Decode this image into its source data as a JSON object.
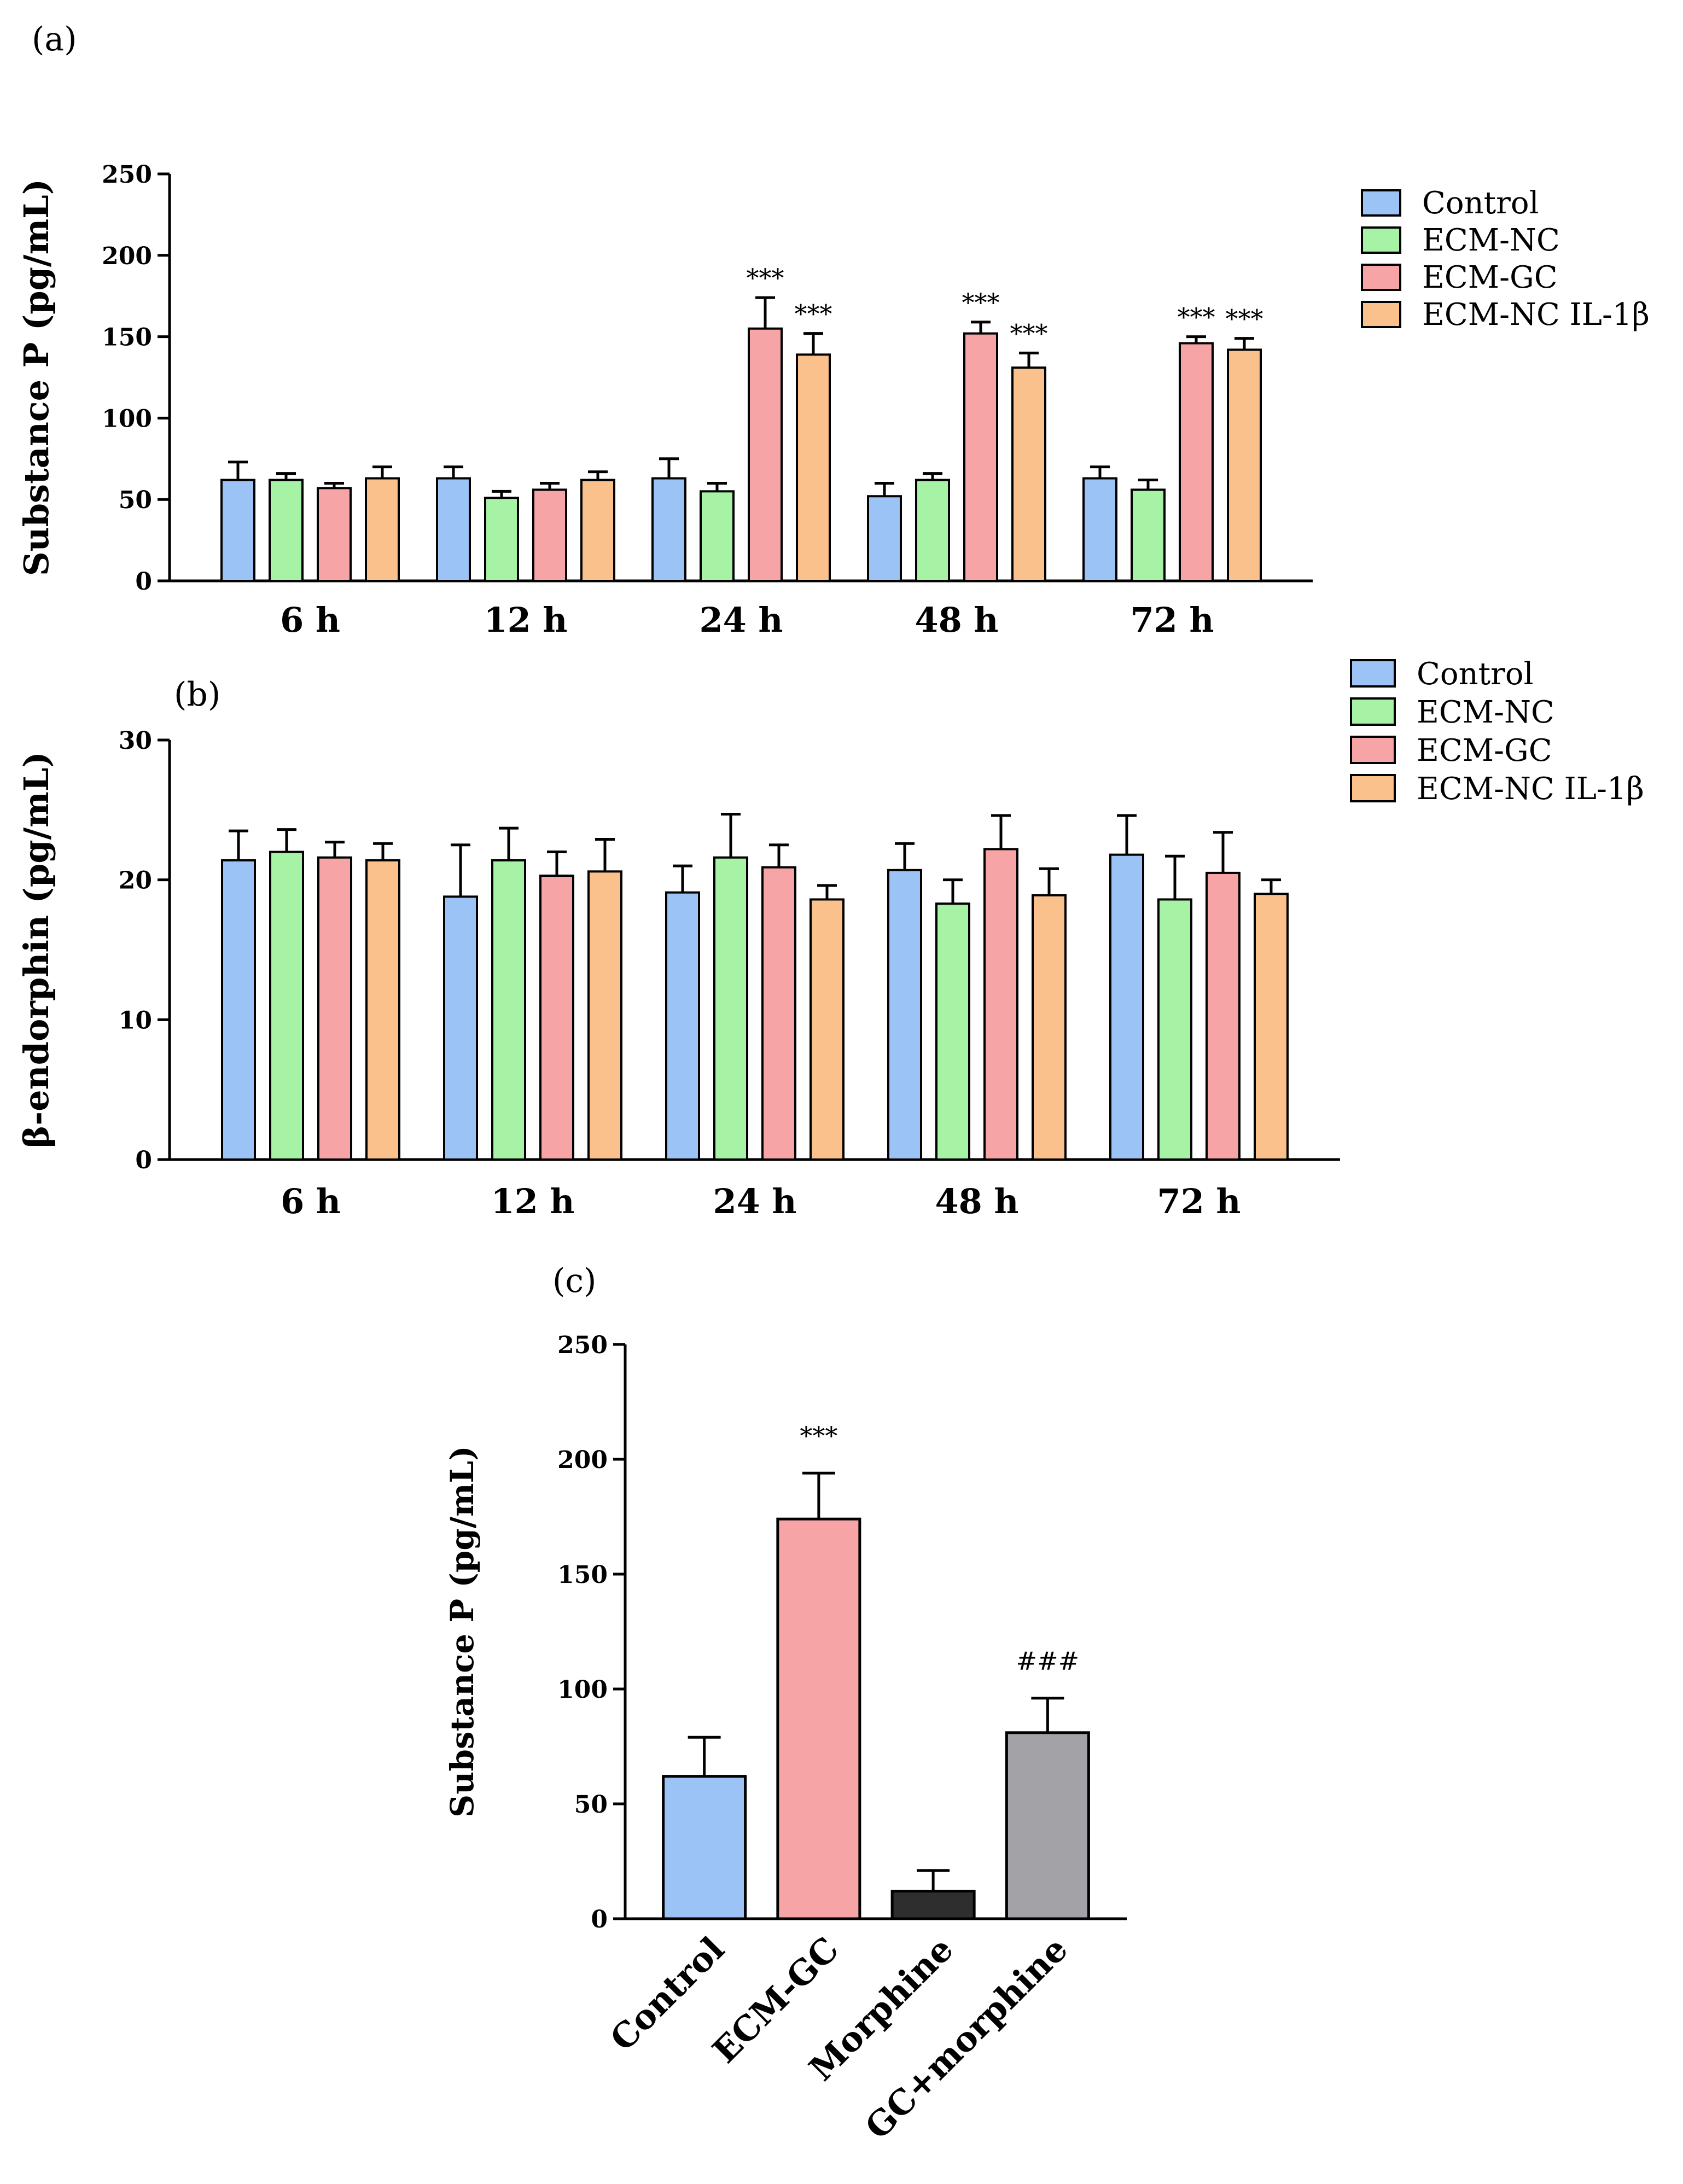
{
  "colors": {
    "Control": "#9CC3F5",
    "ECM-NC": "#A6F3A6",
    "ECM-GC": "#F7A4A7",
    "ECM-NC IL-1β": "#FBC18D",
    "Morphine": "#2E2E2E",
    "GC+morphine": "#A3A2A6"
  },
  "chart_data": [
    {
      "panel_label": "(a)",
      "type": "bar",
      "ylabel": "Substance P (pg/mL)",
      "ylim": [
        0,
        250
      ],
      "yticks": [
        "0",
        "50",
        "100",
        "150",
        "200",
        "250"
      ],
      "categories": [
        "6 h",
        "12 h",
        "24 h",
        "48 h",
        "72 h"
      ],
      "legend_labels": [
        "Control",
        "ECM-NC",
        "ECM-GC",
        "ECM-NC IL-1β"
      ],
      "series": [
        {
          "name": "Control",
          "values": [
            62,
            63,
            63,
            52,
            63
          ],
          "errors": [
            11,
            7,
            12,
            8,
            7
          ],
          "sig": [
            "",
            "",
            "",
            "",
            ""
          ]
        },
        {
          "name": "ECM-NC",
          "values": [
            62,
            51,
            55,
            62,
            56
          ],
          "errors": [
            4,
            4,
            5,
            4,
            6
          ],
          "sig": [
            "",
            "",
            "",
            "",
            ""
          ]
        },
        {
          "name": "ECM-GC",
          "values": [
            57,
            56,
            155,
            152,
            146
          ],
          "errors": [
            3,
            4,
            19,
            7,
            4
          ],
          "sig": [
            "",
            "",
            "***",
            "***",
            "***"
          ]
        },
        {
          "name": "ECM-NC IL-1β",
          "values": [
            63,
            62,
            139,
            131,
            142
          ],
          "errors": [
            7,
            5,
            13,
            9,
            7
          ],
          "sig": [
            "",
            "",
            "***",
            "***",
            "***"
          ]
        }
      ]
    },
    {
      "panel_label": "(b)",
      "type": "bar",
      "ylabel": "β-endorphin (pg/mL)",
      "ylim": [
        0,
        30
      ],
      "yticks": [
        "0",
        "10",
        "20",
        "30"
      ],
      "categories": [
        "6 h",
        "12 h",
        "24 h",
        "48 h",
        "72 h"
      ],
      "legend_labels": [
        "Control",
        "ECM-NC",
        "ECM-GC",
        "ECM-NC IL-1β"
      ],
      "series": [
        {
          "name": "Control",
          "values": [
            21.4,
            18.8,
            19.1,
            20.7,
            21.8
          ],
          "errors": [
            2.1,
            3.7,
            1.9,
            1.9,
            2.8
          ]
        },
        {
          "name": "ECM-NC",
          "values": [
            22.0,
            21.4,
            21.6,
            18.3,
            18.6
          ],
          "errors": [
            1.6,
            2.3,
            3.1,
            1.7,
            3.1
          ]
        },
        {
          "name": "ECM-GC",
          "values": [
            21.6,
            20.3,
            20.9,
            22.2,
            20.5
          ],
          "errors": [
            1.1,
            1.7,
            1.6,
            2.4,
            2.9
          ]
        },
        {
          "name": "ECM-NC IL-1β",
          "values": [
            21.4,
            20.6,
            18.6,
            18.9,
            19.0
          ],
          "errors": [
            1.2,
            2.3,
            1.0,
            1.9,
            1.0
          ]
        }
      ]
    },
    {
      "panel_label": "(c)",
      "type": "bar",
      "ylabel": "Substance P (pg/mL)",
      "ylim": [
        0,
        250
      ],
      "yticks": [
        "0",
        "50",
        "100",
        "150",
        "200",
        "250"
      ],
      "categories": [
        "Control",
        "ECM-GC",
        "Morphine",
        "GC+morphine"
      ],
      "values": [
        62,
        174,
        12,
        81
      ],
      "errors": [
        17,
        20,
        9,
        15
      ],
      "sig": [
        "",
        "***",
        "",
        "###"
      ]
    }
  ]
}
